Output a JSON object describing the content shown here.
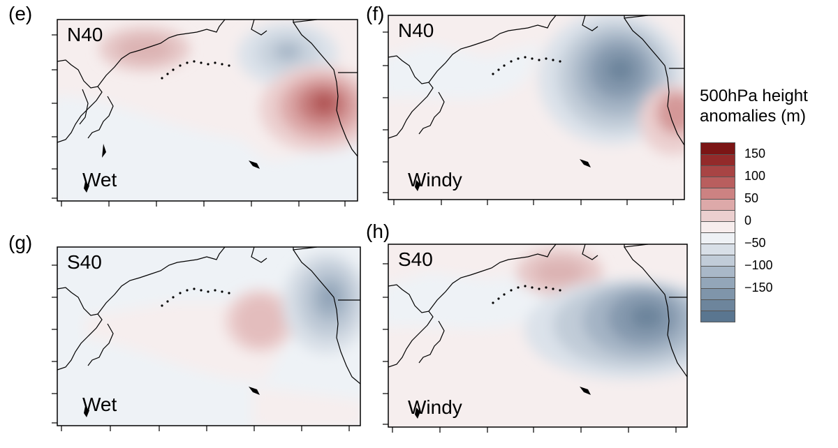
{
  "panels": [
    {
      "letter": "(e)",
      "title": "N40",
      "type": "Wet"
    },
    {
      "letter": "(f)",
      "title": "N40",
      "type": "Windy"
    },
    {
      "letter": "(g)",
      "title": "S40",
      "type": "Wet"
    },
    {
      "letter": "(h)",
      "title": "S40",
      "type": "Windy"
    }
  ],
  "legend": {
    "title_line1": "500hPa height",
    "title_line2": "anomalies (m)",
    "ticks": [
      "150",
      "100",
      "50",
      "0",
      "−50",
      "−100",
      "−150"
    ],
    "colors": [
      "#7b1515",
      "#932a2a",
      "#a84444",
      "#b95e5e",
      "#cc8282",
      "#dda9a9",
      "#ebcfcf",
      "#f7eded",
      "#eef1f5",
      "#d8dfe7",
      "#c1ccd8",
      "#a9b8c8",
      "#93a6b9",
      "#7f95aa",
      "#6d859c",
      "#5a7690"
    ]
  }
}
